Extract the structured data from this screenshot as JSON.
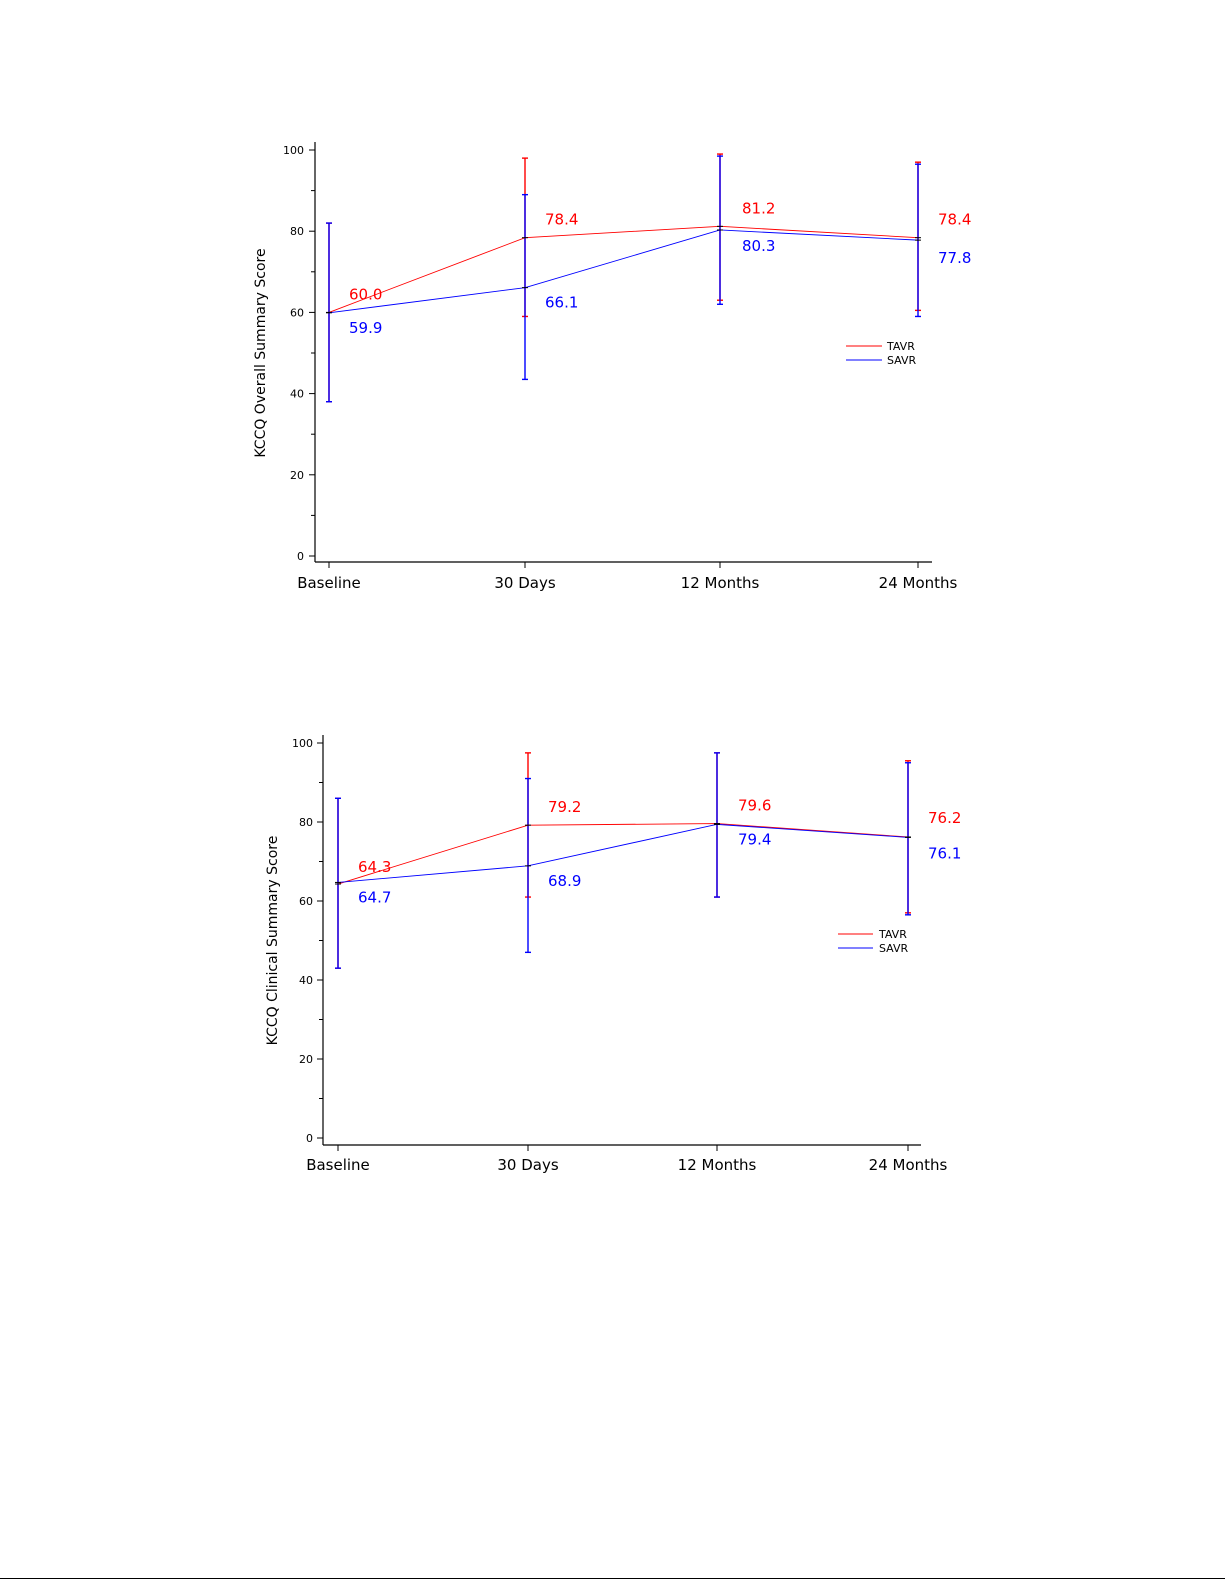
{
  "chart_data": [
    {
      "type": "line",
      "title": "",
      "xlabel": "",
      "ylabel": "KCCQ Overall Summary Score",
      "ylim": [
        0,
        100
      ],
      "yticks": [
        0,
        20,
        40,
        60,
        80,
        100
      ],
      "categories": [
        "Baseline",
        "30 Days",
        "12 Months",
        "24 Months"
      ],
      "legend_position": "right-middle",
      "grid": false,
      "series": [
        {
          "name": "TAVR",
          "color": "#ff0000",
          "values": [
            60.0,
            78.4,
            81.2,
            78.4
          ],
          "labels": [
            "60.0",
            "78.4",
            "81.2",
            "78.4"
          ],
          "err_low": [
            38,
            59,
            63,
            60.5
          ],
          "err_high": [
            82,
            98,
            99,
            97
          ]
        },
        {
          "name": "SAVR",
          "color": "#0000ff",
          "values": [
            59.9,
            66.1,
            80.3,
            77.8
          ],
          "labels": [
            "59.9",
            "66.1",
            "80.3",
            "77.8"
          ],
          "err_low": [
            38,
            43.5,
            62,
            59
          ],
          "err_high": [
            82,
            89,
            98.5,
            96.5
          ]
        }
      ]
    },
    {
      "type": "line",
      "title": "",
      "xlabel": "",
      "ylabel": "KCCQ Clinical Summary Score",
      "ylim": [
        0,
        100
      ],
      "yticks": [
        0,
        20,
        40,
        60,
        80,
        100
      ],
      "categories": [
        "Baseline",
        "30 Days",
        "12 Months",
        "24 Months"
      ],
      "legend_position": "right-middle",
      "grid": false,
      "series": [
        {
          "name": "TAVR",
          "color": "#ff0000",
          "values": [
            64.3,
            79.2,
            79.6,
            76.2
          ],
          "labels": [
            "64.3",
            "79.2",
            "79.6",
            "76.2"
          ],
          "err_low": [
            43,
            61,
            61,
            57
          ],
          "err_high": [
            86,
            97.5,
            97.5,
            95.5
          ]
        },
        {
          "name": "SAVR",
          "color": "#0000ff",
          "values": [
            64.7,
            68.9,
            79.4,
            76.1
          ],
          "labels": [
            "64.7",
            "68.9",
            "79.4",
            "76.1"
          ],
          "err_low": [
            43,
            47,
            61,
            56.5
          ],
          "err_high": [
            86,
            91,
            97.5,
            95
          ]
        }
      ]
    }
  ]
}
